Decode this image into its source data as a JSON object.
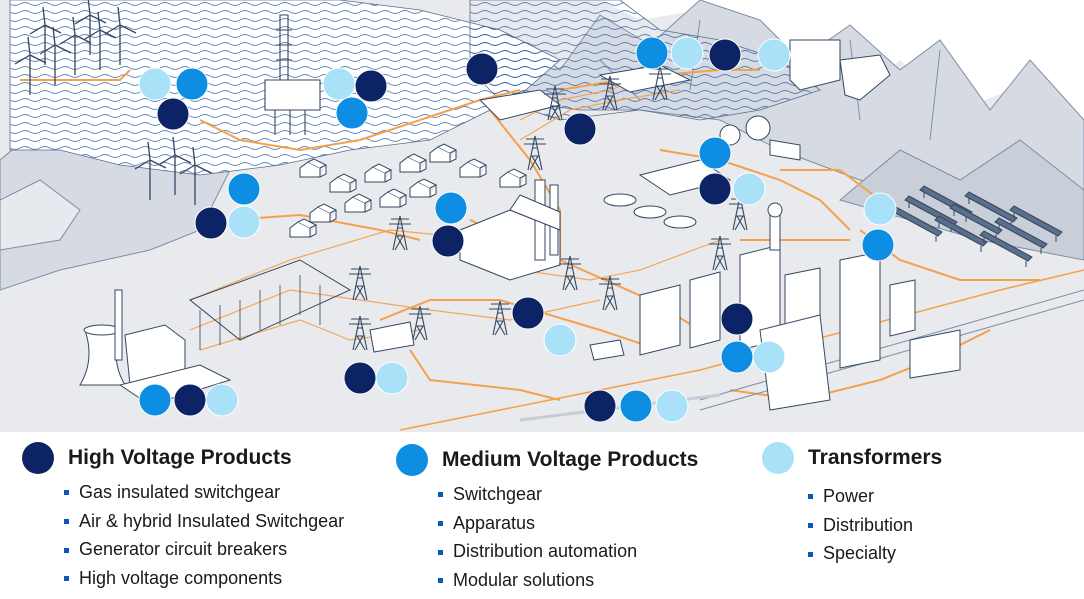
{
  "colors": {
    "high_voltage": "#0c2466",
    "medium_voltage": "#0d8ee2",
    "transformers": "#a9e2f8",
    "power_line": "#f5a04a",
    "water": "#2c5ea8",
    "outline": "#5b6f8a",
    "land": "#e8eaee"
  },
  "categories": [
    {
      "key": "high_voltage",
      "title": "High Voltage Products",
      "items": [
        "Gas insulated switchgear",
        "Air & hybrid Insulated Switchgear",
        "Generator circuit breakers",
        "High voltage components"
      ]
    },
    {
      "key": "medium_voltage",
      "title": "Medium Voltage Products",
      "items": [
        "Switchgear",
        "Apparatus",
        "Distribution automation",
        "Modular solutions"
      ]
    },
    {
      "key": "transformers",
      "title": "Transformers",
      "items": [
        "Power",
        "Distribution",
        "Specialty"
      ]
    }
  ],
  "markers": [
    {
      "site": "offshore-wind-farm",
      "types": [
        "transformers",
        "medium_voltage",
        "high_voltage"
      ]
    },
    {
      "site": "offshore-platform",
      "types": [
        "transformers",
        "high_voltage",
        "medium_voltage"
      ]
    },
    {
      "site": "onshore-wind-farm",
      "types": [
        "medium_voltage",
        "high_voltage",
        "transformers"
      ]
    },
    {
      "site": "coastal-substation",
      "types": [
        "high_voltage"
      ]
    },
    {
      "site": "hill-substation",
      "types": [
        "high_voltage"
      ]
    },
    {
      "site": "hydro-dam",
      "types": [
        "medium_voltage",
        "transformers",
        "high_voltage"
      ]
    },
    {
      "site": "hydro-plant",
      "types": [
        "transformers"
      ]
    },
    {
      "site": "village",
      "types": [
        "medium_voltage",
        "high_voltage"
      ]
    },
    {
      "site": "chemical-plant",
      "types": [
        "medium_voltage",
        "high_voltage",
        "transformers"
      ]
    },
    {
      "site": "solar-farm",
      "types": [
        "transformers",
        "medium_voltage"
      ]
    },
    {
      "site": "transmission-line",
      "types": [
        "high_voltage",
        "transformers"
      ]
    },
    {
      "site": "city-center",
      "types": [
        "high_voltage",
        "medium_voltage",
        "transformers"
      ]
    },
    {
      "site": "thermal-power-plant",
      "types": [
        "medium_voltage",
        "high_voltage",
        "transformers"
      ]
    },
    {
      "site": "switchyard",
      "types": [
        "high_voltage",
        "transformers"
      ]
    },
    {
      "site": "railway",
      "types": [
        "high_voltage",
        "medium_voltage",
        "transformers"
      ]
    }
  ]
}
